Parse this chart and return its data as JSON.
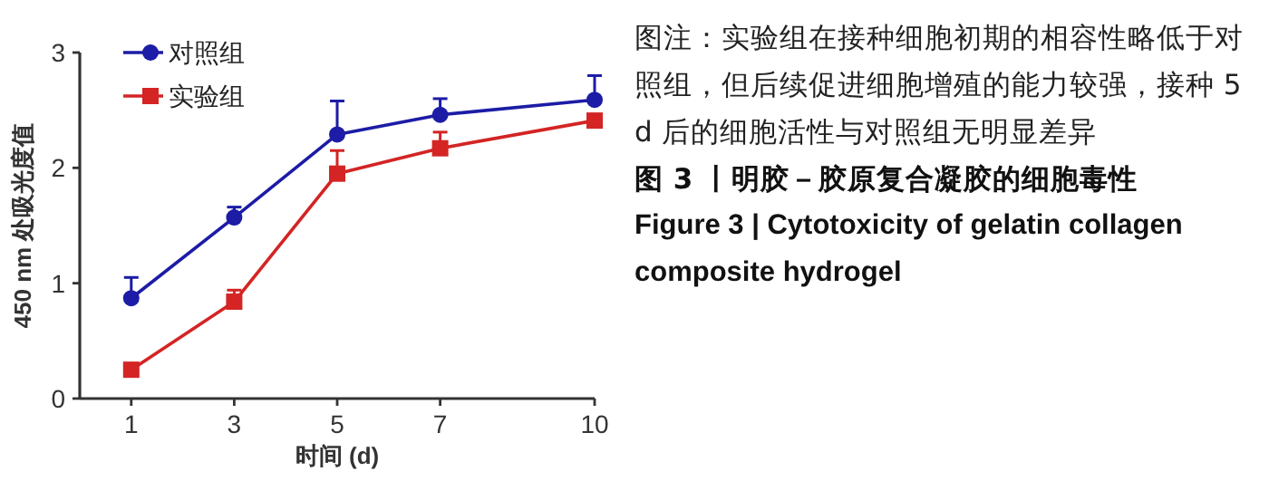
{
  "chart_data": {
    "type": "line",
    "title": "图 3 丨明胶－胶原复合凝胶的细胞毒性",
    "subtitle": "Figure 3 | Cytotoxicity of gelatin collagen composite hydrogel",
    "annotations": [
      "图注：实验组在接种细胞初期的相容性略低于对照组，但后续促进细胞增殖的能力较强，接种 5 d 后的细胞活性与对照组无明显差异"
    ],
    "xlabel": "时间 (d)",
    "ylabel": "450 nm 处吸光度值",
    "x": [
      1,
      3,
      5,
      7,
      10
    ],
    "series": [
      {
        "name": "对照组",
        "color": "#1c1ca6",
        "marker": "circle",
        "values": [
          0.87,
          1.57,
          2.29,
          2.46,
          2.59
        ],
        "errors": [
          [
            0.87,
            1.05
          ],
          [
            1.57,
            1.66
          ],
          [
            2.29,
            2.58
          ],
          [
            2.46,
            2.6
          ],
          [
            2.59,
            2.8
          ]
        ]
      },
      {
        "name": "实验组",
        "color": "#d42424",
        "marker": "square",
        "values": [
          0.25,
          0.84,
          1.95,
          2.17,
          2.41
        ],
        "errors": [
          null,
          [
            0.84,
            0.94
          ],
          [
            1.95,
            2.15
          ],
          [
            2.17,
            2.31
          ],
          null
        ]
      }
    ],
    "xlim": [
      0,
      10
    ],
    "ylim": [
      0,
      3
    ],
    "xticks": [
      1,
      3,
      5,
      7,
      10
    ],
    "yticks": [
      0,
      1,
      2,
      3
    ],
    "grid": false,
    "legend": "top left",
    "line_style": "solid"
  }
}
